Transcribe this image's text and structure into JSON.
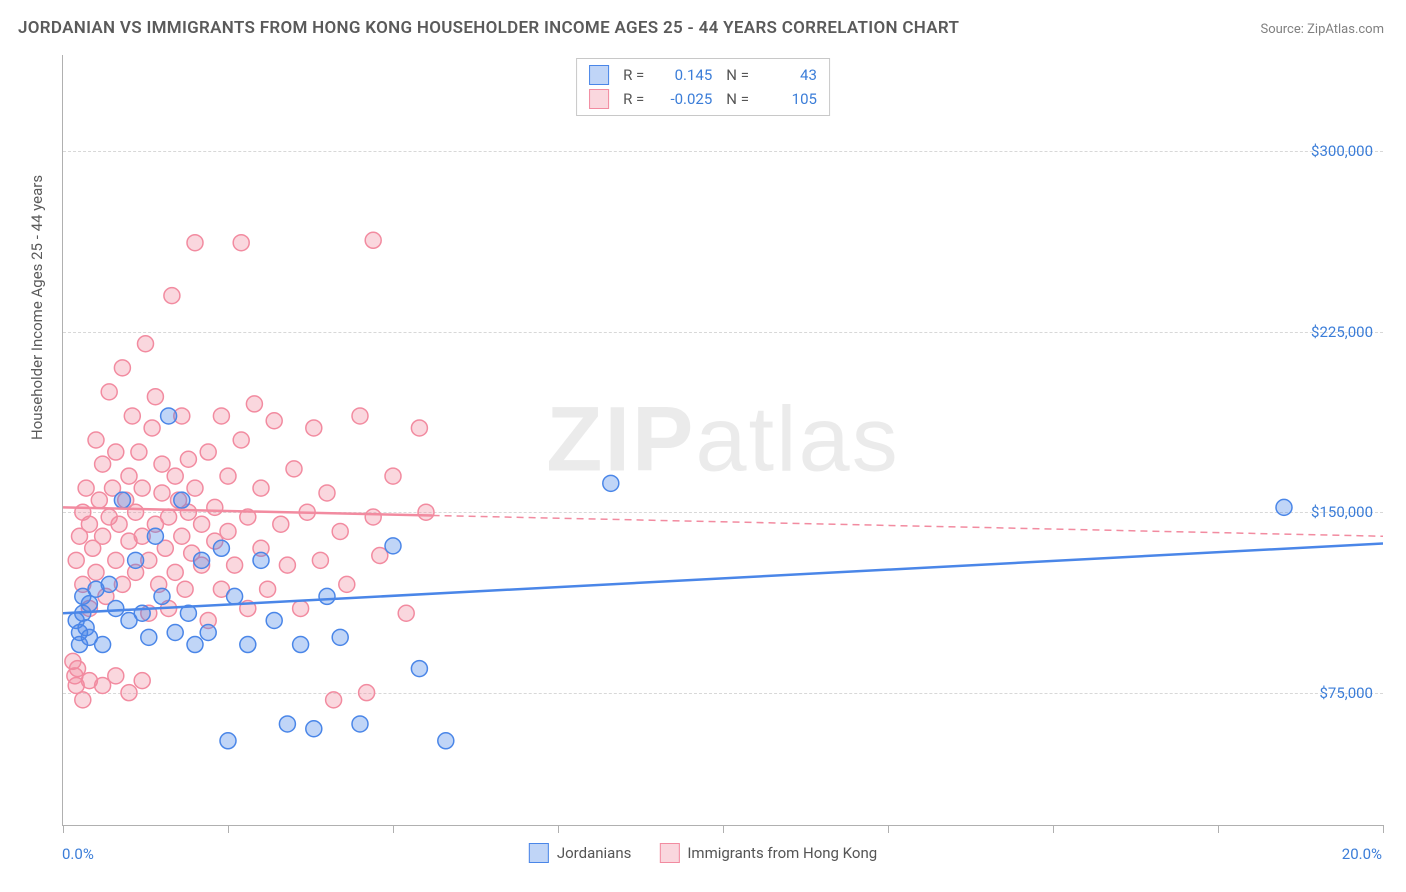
{
  "title": "JORDANIAN VS IMMIGRANTS FROM HONG KONG HOUSEHOLDER INCOME AGES 25 - 44 YEARS CORRELATION CHART",
  "source": "Source: ZipAtlas.com",
  "watermark_zip": "ZIP",
  "watermark_atlas": "atlas",
  "y_axis_title": "Householder Income Ages 25 - 44 years",
  "chart": {
    "type": "scatter",
    "background_color": "#ffffff",
    "grid_color": "#d8d8d8",
    "axis_color": "#b0b0b0",
    "xlim": [
      0,
      20
    ],
    "ylim": [
      20000,
      340000
    ],
    "x_tick_step": 2.5,
    "x_start_label": "0.0%",
    "x_end_label": "20.0%",
    "y_ticks": [
      75000,
      150000,
      225000,
      300000
    ],
    "y_tick_labels": [
      "$75,000",
      "$150,000",
      "$225,000",
      "$300,000"
    ],
    "marker_radius": 8,
    "marker_stroke_width": 1.5,
    "marker_fill_opacity": 0.35,
    "trend_line_width": 2.5,
    "trend_dash": "7,5",
    "series": [
      {
        "name": "Jordanians",
        "color": "#4a86e8",
        "fill": "rgba(74,134,232,0.35)",
        "r_value": "0.145",
        "n_value": "43",
        "trend": {
          "y_at_x0": 108000,
          "y_at_x20": 137000,
          "solid_until_x": 20
        },
        "points": [
          [
            0.2,
            105000
          ],
          [
            0.25,
            100000
          ],
          [
            0.3,
            115000
          ],
          [
            0.3,
            108000
          ],
          [
            0.35,
            102000
          ],
          [
            0.4,
            98000
          ],
          [
            0.4,
            112000
          ],
          [
            0.5,
            118000
          ],
          [
            0.6,
            95000
          ],
          [
            0.7,
            120000
          ],
          [
            0.8,
            110000
          ],
          [
            0.9,
            155000
          ],
          [
            1.0,
            105000
          ],
          [
            1.1,
            130000
          ],
          [
            1.2,
            108000
          ],
          [
            1.3,
            98000
          ],
          [
            1.4,
            140000
          ],
          [
            1.5,
            115000
          ],
          [
            1.6,
            190000
          ],
          [
            1.7,
            100000
          ],
          [
            1.8,
            155000
          ],
          [
            1.9,
            108000
          ],
          [
            2.0,
            95000
          ],
          [
            2.1,
            130000
          ],
          [
            2.2,
            100000
          ],
          [
            2.4,
            135000
          ],
          [
            2.5,
            55000
          ],
          [
            2.6,
            115000
          ],
          [
            2.8,
            95000
          ],
          [
            3.0,
            130000
          ],
          [
            3.2,
            105000
          ],
          [
            3.4,
            62000
          ],
          [
            3.6,
            95000
          ],
          [
            3.8,
            60000
          ],
          [
            4.0,
            115000
          ],
          [
            4.2,
            98000
          ],
          [
            4.5,
            62000
          ],
          [
            5.0,
            136000
          ],
          [
            5.4,
            85000
          ],
          [
            5.8,
            55000
          ],
          [
            8.3,
            162000
          ],
          [
            18.5,
            152000
          ],
          [
            0.25,
            95000
          ]
        ]
      },
      {
        "name": "Immigrants from Hong Kong",
        "color": "#f28ba0",
        "fill": "rgba(242,139,160,0.35)",
        "r_value": "-0.025",
        "n_value": "105",
        "trend": {
          "y_at_x0": 152000,
          "y_at_x20": 140000,
          "solid_until_x": 5.6
        },
        "points": [
          [
            0.2,
            130000
          ],
          [
            0.25,
            140000
          ],
          [
            0.3,
            120000
          ],
          [
            0.3,
            150000
          ],
          [
            0.35,
            160000
          ],
          [
            0.4,
            110000
          ],
          [
            0.4,
            145000
          ],
          [
            0.45,
            135000
          ],
          [
            0.5,
            180000
          ],
          [
            0.5,
            125000
          ],
          [
            0.55,
            155000
          ],
          [
            0.6,
            170000
          ],
          [
            0.6,
            140000
          ],
          [
            0.65,
            115000
          ],
          [
            0.7,
            200000
          ],
          [
            0.7,
            148000
          ],
          [
            0.75,
            160000
          ],
          [
            0.8,
            130000
          ],
          [
            0.8,
            175000
          ],
          [
            0.85,
            145000
          ],
          [
            0.9,
            210000
          ],
          [
            0.9,
            120000
          ],
          [
            0.95,
            155000
          ],
          [
            1.0,
            165000
          ],
          [
            1.0,
            138000
          ],
          [
            1.05,
            190000
          ],
          [
            1.1,
            125000
          ],
          [
            1.1,
            150000
          ],
          [
            1.15,
            175000
          ],
          [
            1.2,
            140000
          ],
          [
            1.2,
            160000
          ],
          [
            1.25,
            220000
          ],
          [
            1.3,
            130000
          ],
          [
            1.3,
            108000
          ],
          [
            1.35,
            185000
          ],
          [
            1.4,
            145000
          ],
          [
            1.4,
            198000
          ],
          [
            1.45,
            120000
          ],
          [
            1.5,
            170000
          ],
          [
            1.5,
            158000
          ],
          [
            1.55,
            135000
          ],
          [
            1.6,
            110000
          ],
          [
            1.6,
            148000
          ],
          [
            1.65,
            240000
          ],
          [
            1.7,
            165000
          ],
          [
            1.7,
            125000
          ],
          [
            1.75,
            155000
          ],
          [
            1.8,
            140000
          ],
          [
            1.8,
            190000
          ],
          [
            1.85,
            118000
          ],
          [
            1.9,
            172000
          ],
          [
            1.9,
            150000
          ],
          [
            1.95,
            133000
          ],
          [
            2.0,
            160000
          ],
          [
            2.0,
            262000
          ],
          [
            2.1,
            128000
          ],
          [
            2.1,
            145000
          ],
          [
            2.2,
            175000
          ],
          [
            2.2,
            105000
          ],
          [
            2.3,
            152000
          ],
          [
            2.3,
            138000
          ],
          [
            2.4,
            190000
          ],
          [
            2.4,
            118000
          ],
          [
            2.5,
            165000
          ],
          [
            2.5,
            142000
          ],
          [
            2.6,
            128000
          ],
          [
            2.7,
            180000
          ],
          [
            2.7,
            262000
          ],
          [
            2.8,
            110000
          ],
          [
            2.8,
            148000
          ],
          [
            2.9,
            195000
          ],
          [
            3.0,
            135000
          ],
          [
            3.0,
            160000
          ],
          [
            3.1,
            118000
          ],
          [
            3.2,
            188000
          ],
          [
            3.3,
            145000
          ],
          [
            3.4,
            128000
          ],
          [
            3.5,
            168000
          ],
          [
            3.6,
            110000
          ],
          [
            3.7,
            150000
          ],
          [
            3.8,
            185000
          ],
          [
            3.9,
            130000
          ],
          [
            4.0,
            158000
          ],
          [
            4.1,
            72000
          ],
          [
            4.2,
            142000
          ],
          [
            4.3,
            120000
          ],
          [
            4.5,
            190000
          ],
          [
            4.6,
            75000
          ],
          [
            4.7,
            148000
          ],
          [
            4.7,
            263000
          ],
          [
            4.8,
            132000
          ],
          [
            5.0,
            165000
          ],
          [
            5.2,
            108000
          ],
          [
            5.4,
            185000
          ],
          [
            5.5,
            150000
          ],
          [
            0.15,
            88000
          ],
          [
            0.18,
            82000
          ],
          [
            0.2,
            78000
          ],
          [
            0.22,
            85000
          ],
          [
            0.3,
            72000
          ],
          [
            0.4,
            80000
          ],
          [
            0.6,
            78000
          ],
          [
            0.8,
            82000
          ],
          [
            1.0,
            75000
          ],
          [
            1.2,
            80000
          ]
        ]
      }
    ]
  },
  "legend_top": {
    "r_label": "R =",
    "n_label": "N ="
  },
  "colors": {
    "axis_label": "#3b7dd8",
    "text": "#5a5a5a"
  }
}
